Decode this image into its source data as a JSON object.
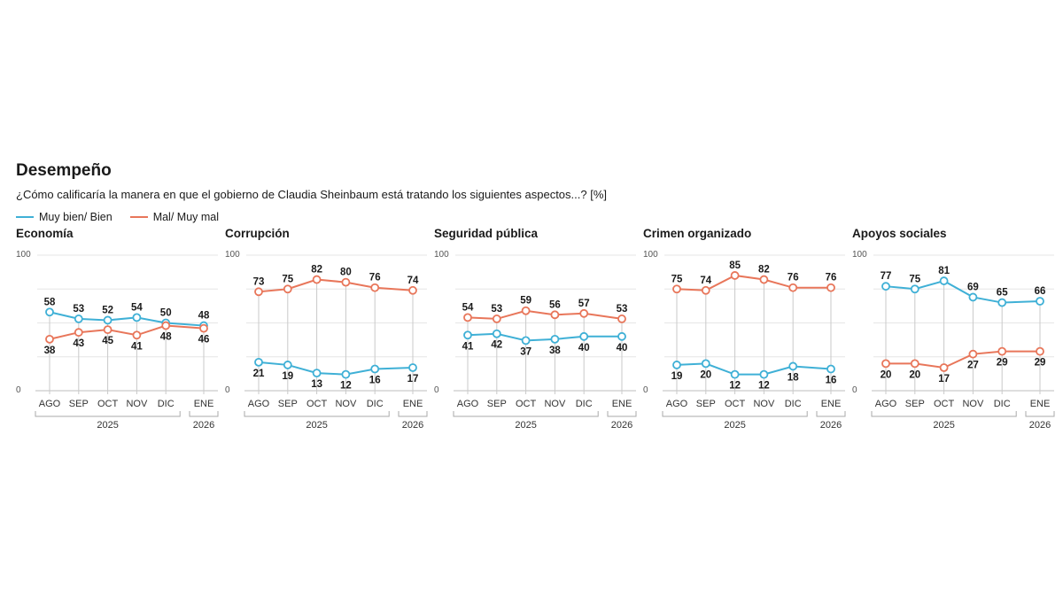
{
  "header": {
    "title": "Desempeño",
    "subtitle": "¿Cómo calificaría la manera en que el gobierno de Claudia Sheinbaum está tratando los siguientes aspectos...? [%]"
  },
  "legend": [
    {
      "label": "Muy bien/ Bien",
      "color": "#3fb0d6"
    },
    {
      "label": "Mal/ Muy mal",
      "color": "#e8765a"
    }
  ],
  "colors": {
    "good": "#3fb0d6",
    "bad": "#e8765a",
    "grid": "#d0d0d0",
    "text": "#1a1a1a",
    "tick": "#555555"
  },
  "axis": {
    "categories": [
      "AGO",
      "SEP",
      "OCT",
      "NOV",
      "DIC",
      "ENE"
    ],
    "years": [
      "2025",
      "2026"
    ],
    "y_ticks": [
      "100",
      "0"
    ]
  },
  "chart_data": [
    {
      "type": "line",
      "title": "Economía",
      "categories": [
        "AGO",
        "SEP",
        "OCT",
        "NOV",
        "DIC",
        "ENE"
      ],
      "ylim": [
        0,
        100
      ],
      "series": [
        {
          "name": "Muy bien/ Bien",
          "values": [
            58,
            53,
            52,
            54,
            50,
            48
          ]
        },
        {
          "name": "Mal/ Muy mal",
          "values": [
            38,
            43,
            45,
            41,
            48,
            46
          ]
        }
      ]
    },
    {
      "type": "line",
      "title": "Corrupción",
      "categories": [
        "AGO",
        "SEP",
        "OCT",
        "NOV",
        "DIC",
        "ENE"
      ],
      "ylim": [
        0,
        100
      ],
      "series": [
        {
          "name": "Muy bien/ Bien",
          "values": [
            21,
            19,
            13,
            12,
            16,
            17
          ]
        },
        {
          "name": "Mal/ Muy mal",
          "values": [
            73,
            75,
            82,
            80,
            76,
            74
          ]
        }
      ]
    },
    {
      "type": "line",
      "title": "Seguridad pública",
      "categories": [
        "AGO",
        "SEP",
        "OCT",
        "NOV",
        "DIC",
        "ENE"
      ],
      "ylim": [
        0,
        100
      ],
      "series": [
        {
          "name": "Muy bien/ Bien",
          "values": [
            41,
            42,
            37,
            38,
            40,
            40
          ]
        },
        {
          "name": "Mal/ Muy mal",
          "values": [
            54,
            53,
            59,
            56,
            57,
            53
          ]
        }
      ]
    },
    {
      "type": "line",
      "title": "Crimen organizado",
      "categories": [
        "AGO",
        "SEP",
        "OCT",
        "NOV",
        "DIC",
        "ENE"
      ],
      "ylim": [
        0,
        100
      ],
      "series": [
        {
          "name": "Muy bien/ Bien",
          "values": [
            19,
            20,
            12,
            12,
            18,
            16
          ]
        },
        {
          "name": "Mal/ Muy mal",
          "values": [
            75,
            74,
            85,
            82,
            76,
            76
          ]
        }
      ]
    },
    {
      "type": "line",
      "title": "Apoyos sociales",
      "categories": [
        "AGO",
        "SEP",
        "OCT",
        "NOV",
        "DIC",
        "ENE"
      ],
      "ylim": [
        0,
        100
      ],
      "series": [
        {
          "name": "Muy bien/ Bien",
          "values": [
            77,
            75,
            81,
            69,
            65,
            66
          ]
        },
        {
          "name": "Mal/ Muy mal",
          "values": [
            20,
            20,
            17,
            27,
            29,
            29
          ]
        }
      ]
    }
  ]
}
